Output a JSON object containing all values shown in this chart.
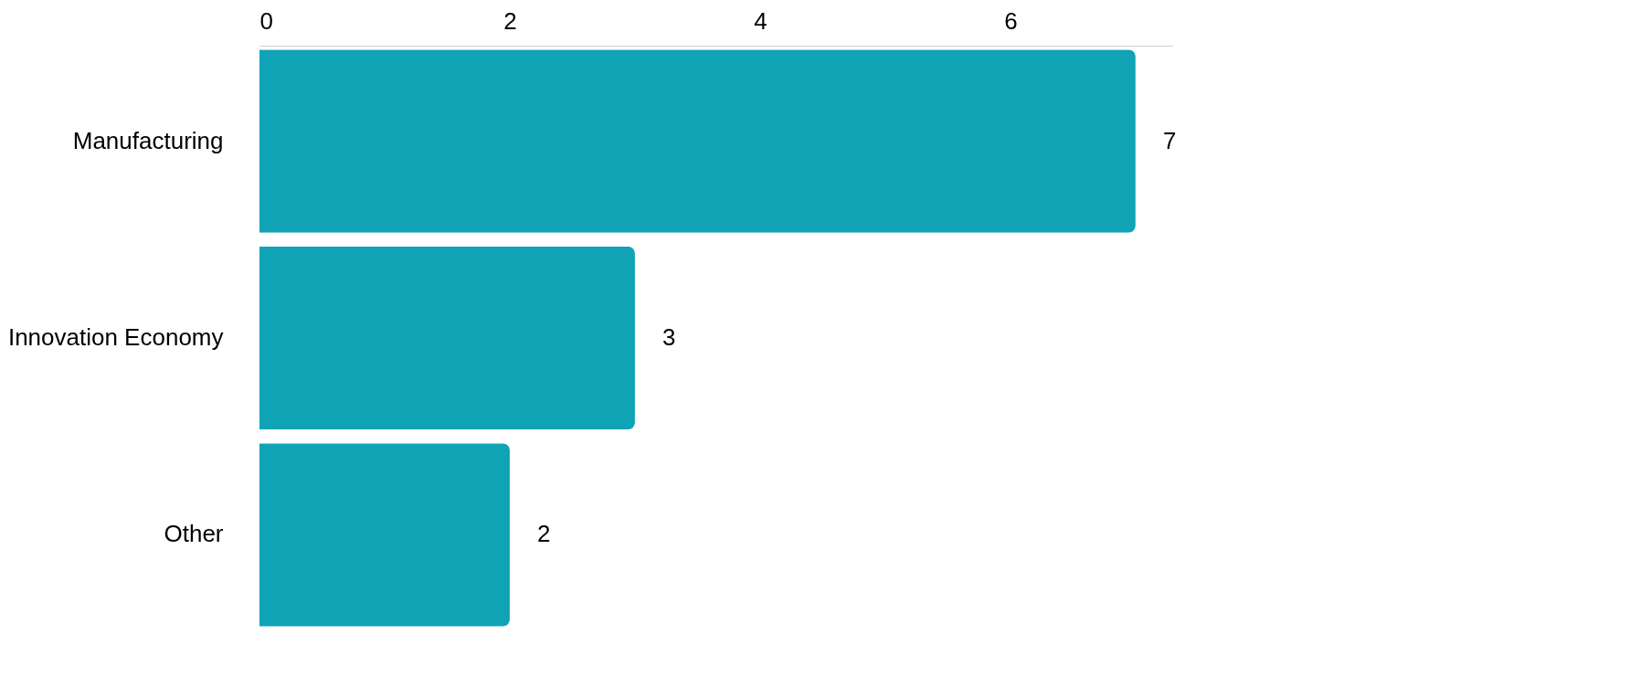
{
  "chart_data": {
    "type": "bar",
    "orientation": "horizontal",
    "categories": [
      "Manufacturing",
      "Innovation Economy",
      "Other"
    ],
    "values": [
      7,
      3,
      2
    ],
    "color": "#10a3b5",
    "xlim": [
      0,
      7.3
    ],
    "xticks": [
      0,
      2,
      4,
      6
    ],
    "data_labels": true,
    "grid": false
  }
}
